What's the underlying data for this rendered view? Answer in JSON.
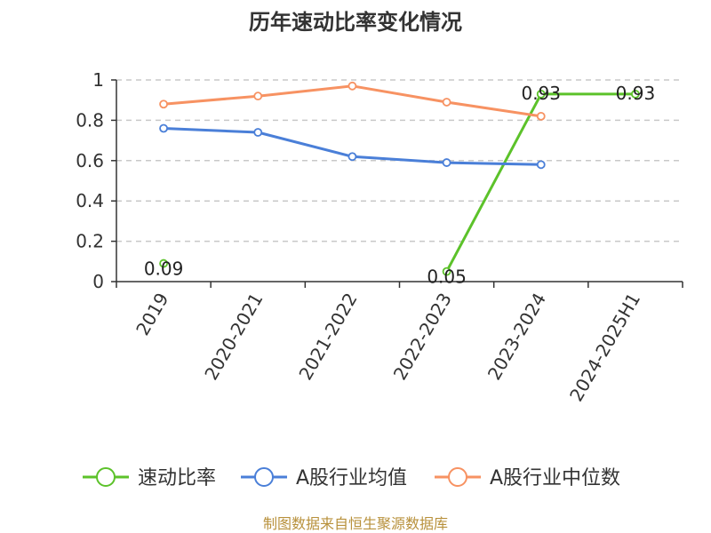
{
  "chart_data": {
    "type": "line",
    "title": "历年速动比率变化情况",
    "categories": [
      "2019",
      "2020-2021",
      "2021-2022",
      "2022-2023",
      "2023-2024",
      "2024-2025H1"
    ],
    "ylim": [
      0,
      1
    ],
    "yticks": [
      "0",
      "0.2",
      "0.4",
      "0.6",
      "0.8",
      "1"
    ],
    "yticks_values": [
      0,
      0.2,
      0.4,
      0.6,
      0.8,
      1
    ],
    "grid": "horizontal-dashed",
    "legend_position": "bottom",
    "series": [
      {
        "name": "速动比率",
        "color": "#5cc22a",
        "values": [
          0.09,
          null,
          null,
          0.05,
          0.93,
          0.93
        ],
        "labels": [
          "0.09",
          null,
          null,
          "0.05",
          "0.93",
          "0.93"
        ]
      },
      {
        "name": "A股行业均值",
        "color": "#4a7fd8",
        "values": [
          0.76,
          0.74,
          0.62,
          0.59,
          0.58,
          null
        ]
      },
      {
        "name": "A股行业中位数",
        "color": "#f79262",
        "values": [
          0.88,
          0.92,
          0.97,
          0.89,
          0.82,
          null
        ]
      }
    ],
    "source": "制图数据来自恒生聚源数据库"
  }
}
